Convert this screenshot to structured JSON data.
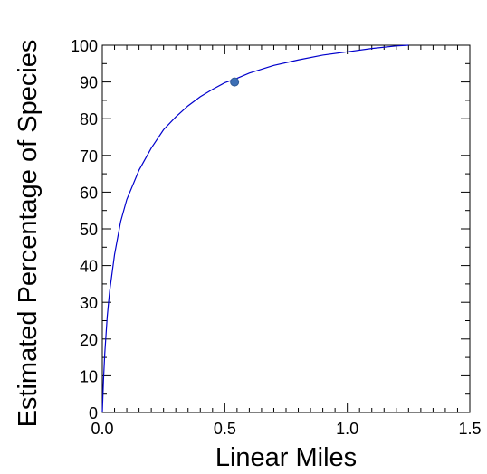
{
  "chart_data": {
    "type": "line",
    "title": "",
    "xlabel": "Linear Miles",
    "ylabel": "Estimated Percentage of Species",
    "xlim": [
      0,
      1.5
    ],
    "ylim": [
      0,
      100
    ],
    "x_ticks": [
      0.0,
      0.5,
      1.0,
      1.5
    ],
    "x_tick_labels": [
      "0.0",
      "0.5",
      "1.0",
      "1.5"
    ],
    "y_ticks": [
      0,
      10,
      20,
      30,
      40,
      50,
      60,
      70,
      80,
      90,
      100
    ],
    "y_tick_labels": [
      "0",
      "10",
      "20",
      "30",
      "40",
      "50",
      "60",
      "70",
      "80",
      "90",
      "100"
    ],
    "grid": false,
    "series": [
      {
        "color": "#0000cc",
        "x": [
          0.0,
          0.005,
          0.01,
          0.02,
          0.03,
          0.05,
          0.075,
          0.1,
          0.15,
          0.2,
          0.25,
          0.3,
          0.35,
          0.4,
          0.45,
          0.5,
          0.55,
          0.6,
          0.7,
          0.8,
          0.9,
          1.0,
          1.1,
          1.2,
          1.25
        ],
        "y": [
          0,
          9,
          16,
          26,
          33,
          43,
          52,
          58,
          66,
          72,
          77,
          80.5,
          83.5,
          86,
          88,
          89.8,
          91,
          92.4,
          94.5,
          96,
          97.3,
          98.2,
          99.1,
          99.8,
          100
        ]
      }
    ],
    "highlight_point": {
      "x": 0.54,
      "y": 90,
      "color": "#3d6fb5"
    }
  }
}
